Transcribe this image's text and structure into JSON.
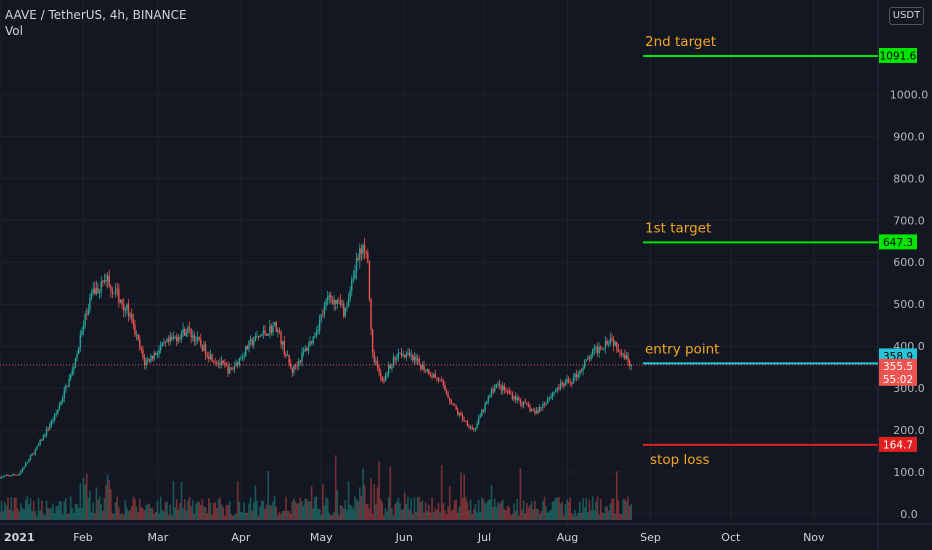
{
  "header": {
    "symbol": "AAVE / TetherUS, 4h, BINANCE",
    "indicator": "Vol",
    "currency": "USDT"
  },
  "chart_data": {
    "type": "candlestick",
    "symbol": "AAVE / TetherUS",
    "interval": "4h",
    "exchange": "BINANCE",
    "y_ticks": [
      0,
      100,
      200,
      300,
      400,
      500,
      600,
      700,
      800,
      900,
      1000
    ],
    "y_tick_labels": [
      "0.0",
      "100.0",
      "200.0",
      "300.0",
      "400.0",
      "500.0",
      "600.0",
      "700.0",
      "800.0",
      "900.0",
      "1000.0"
    ],
    "x_tick_labels": [
      "2021",
      "Feb",
      "Mar",
      "Apr",
      "May",
      "Jun",
      "Jul",
      "Aug",
      "Sep",
      "Oct",
      "Nov"
    ],
    "current_price": {
      "value": 355.5,
      "label": "355.5",
      "countdown": "55:02"
    },
    "price_path": [
      {
        "date": "2021-01-01",
        "close": 88
      },
      {
        "date": "2021-01-08",
        "close": 95
      },
      {
        "date": "2021-01-15",
        "close": 160
      },
      {
        "date": "2021-01-22",
        "close": 240
      },
      {
        "date": "2021-01-28",
        "close": 340
      },
      {
        "date": "2021-02-04",
        "close": 520
      },
      {
        "date": "2021-02-10",
        "close": 560
      },
      {
        "date": "2021-02-18",
        "close": 480
      },
      {
        "date": "2021-02-24",
        "close": 360
      },
      {
        "date": "2021-03-03",
        "close": 400
      },
      {
        "date": "2021-03-12",
        "close": 440
      },
      {
        "date": "2021-03-20",
        "close": 380
      },
      {
        "date": "2021-03-28",
        "close": 340
      },
      {
        "date": "2021-04-05",
        "close": 410
      },
      {
        "date": "2021-04-14",
        "close": 450
      },
      {
        "date": "2021-04-20",
        "close": 340
      },
      {
        "date": "2021-04-28",
        "close": 420
      },
      {
        "date": "2021-05-04",
        "close": 520
      },
      {
        "date": "2021-05-10",
        "close": 480
      },
      {
        "date": "2021-05-15",
        "close": 620
      },
      {
        "date": "2021-05-18",
        "close": 640
      },
      {
        "date": "2021-05-20",
        "close": 380
      },
      {
        "date": "2021-05-24",
        "close": 320
      },
      {
        "date": "2021-05-30",
        "close": 390
      },
      {
        "date": "2021-06-06",
        "close": 360
      },
      {
        "date": "2021-06-14",
        "close": 320
      },
      {
        "date": "2021-06-21",
        "close": 240
      },
      {
        "date": "2021-06-27",
        "close": 200
      },
      {
        "date": "2021-07-05",
        "close": 310
      },
      {
        "date": "2021-07-12",
        "close": 280
      },
      {
        "date": "2021-07-20",
        "close": 240
      },
      {
        "date": "2021-07-28",
        "close": 300
      },
      {
        "date": "2021-08-03",
        "close": 320
      },
      {
        "date": "2021-08-10",
        "close": 380
      },
      {
        "date": "2021-08-17",
        "close": 420
      },
      {
        "date": "2021-08-21",
        "close": 390
      },
      {
        "date": "2021-08-25",
        "close": 355.5
      }
    ],
    "levels": [
      {
        "name": "2nd target",
        "value": 1091.6,
        "label": "1091.6",
        "color": "#00e600",
        "badge_text": "#000000"
      },
      {
        "name": "1st target",
        "value": 647.3,
        "label": "647.3",
        "color": "#00e600",
        "badge_text": "#000000"
      },
      {
        "name": "entry point",
        "value": 358.9,
        "label": "358.9",
        "color": "#26c6da",
        "badge_text": "#000000"
      },
      {
        "name": "stop loss",
        "value": 164.7,
        "label": "164.7",
        "color": "#e02020",
        "badge_text": "#ffffff"
      }
    ],
    "annotations": [
      {
        "text": "2nd target",
        "color": "#f5a623"
      },
      {
        "text": "1st target",
        "color": "#f5a623"
      },
      {
        "text": "entry point",
        "color": "#f5a623"
      },
      {
        "text": "stop loss",
        "color": "#f5a623"
      }
    ],
    "colors": {
      "background": "#131722",
      "grid": "#1e222d",
      "up": "#26a69a",
      "down": "#ef5350",
      "axis_text": "#b2b5be"
    }
  }
}
